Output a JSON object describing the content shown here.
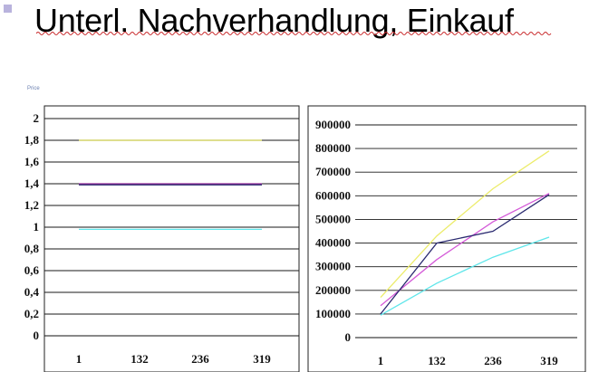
{
  "slide": {
    "title": "Unterl. Nachverhandlung, Einkauf",
    "small_label": "Price"
  },
  "colors": {
    "accent": "#b9b3dd",
    "yellow": "#e8e85a",
    "purple": "#9a2f9a",
    "dark_blue": "#2a2a70",
    "cyan": "#5fe6ea",
    "magenta": "#d45ad8"
  },
  "chart_data": [
    {
      "type": "line",
      "categories": [
        "1",
        "132",
        "236",
        "319"
      ],
      "ylim": [
        0,
        2
      ],
      "y_ticks": [
        "0",
        "0,2",
        "0,4",
        "0,6",
        "0,8",
        "1",
        "1,2",
        "1,4",
        "1,6",
        "1,8",
        "2"
      ],
      "grid": true,
      "series": [
        {
          "color": "#c9c94a",
          "values": [
            1.8,
            1.8,
            1.8,
            1.8
          ]
        },
        {
          "color": "#9a2f9a",
          "values": [
            1.4,
            1.4,
            1.4,
            1.4
          ]
        },
        {
          "color": "#2a2a70",
          "values": [
            1.39,
            1.39,
            1.39,
            1.39
          ]
        },
        {
          "color": "#5fe6ea",
          "values": [
            0.98,
            0.98,
            0.98,
            0.98
          ]
        }
      ]
    },
    {
      "type": "line",
      "categories": [
        "1",
        "132",
        "236",
        "319"
      ],
      "ylim": [
        0,
        900000
      ],
      "y_ticks": [
        "0",
        "100000",
        "200000",
        "300000",
        "400000",
        "500000",
        "600000",
        "700000",
        "800000",
        "900000"
      ],
      "grid": true,
      "series": [
        {
          "color": "#ecec6a",
          "values": [
            170000,
            430000,
            630000,
            790000
          ]
        },
        {
          "color": "#d45ad8",
          "values": [
            135000,
            330000,
            490000,
            610000
          ]
        },
        {
          "color": "#2a2a70",
          "values": [
            100000,
            400000,
            450000,
            605000
          ]
        },
        {
          "color": "#5fe6ea",
          "values": [
            95000,
            230000,
            340000,
            425000
          ]
        }
      ]
    }
  ]
}
